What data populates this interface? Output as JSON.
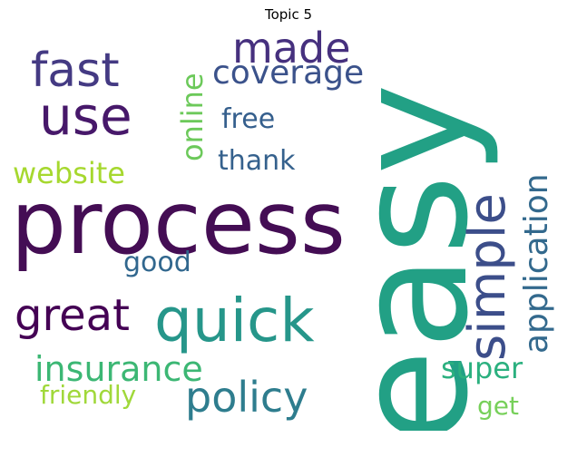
{
  "title": "Topic 5",
  "words": {
    "easy": "easy",
    "process": "process",
    "quick": "quick",
    "simple": "simple",
    "use": "use",
    "fast": "fast",
    "made": "made",
    "policy": "policy",
    "great": "great",
    "coverage": "coverage",
    "application": "application",
    "insurance": "insurance",
    "online": "online",
    "website": "website",
    "free": "free",
    "thank": "thank",
    "super": "super",
    "good": "good",
    "friendly": "friendly",
    "get": "get"
  },
  "colors": {
    "easy": "#22a085",
    "process": "#440d54",
    "quick": "#26968a",
    "simple": "#3c4e8a",
    "use": "#47186a",
    "fast": "#443a83",
    "made": "#46307e",
    "policy": "#2e7d8e",
    "great": "#440154",
    "coverage": "#3b528b",
    "application": "#33698d",
    "insurance": "#3cb774",
    "online": "#6cc95a",
    "website": "#a6d82f",
    "free": "#355f8d",
    "thank": "#35618d",
    "super": "#2bb07f",
    "good": "#31678e",
    "friendly": "#a0d83a",
    "get": "#77d05a"
  }
}
